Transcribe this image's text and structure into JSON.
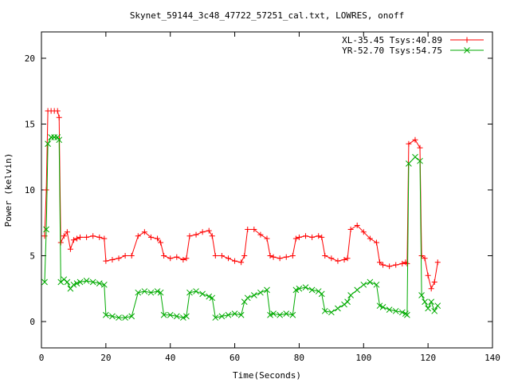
{
  "chart_data": {
    "type": "line",
    "title": "Skynet_59144_3c48_47722_57251_cal.txt, LOWRES, onoff",
    "xlabel": "Time(Seconds)",
    "ylabel": "Power (kelvin)",
    "xlim": [
      0,
      140
    ],
    "ylim": [
      -2,
      22
    ],
    "xticks": [
      0,
      20,
      40,
      60,
      80,
      100,
      120,
      140
    ],
    "yticks": [
      0,
      5,
      10,
      15,
      20
    ],
    "grid": false,
    "legend_position": "top-right",
    "series": [
      {
        "name": "XL-35.45 Tsys:40.89",
        "color": "#ff0000",
        "marker": "plus",
        "x": [
          1.0,
          1.5,
          2.0,
          3.0,
          4.0,
          5.0,
          5.5,
          6.0,
          7.0,
          8.0,
          9.0,
          10.0,
          11.0,
          12.0,
          14.0,
          16.0,
          18.0,
          19.5,
          20.0,
          22.0,
          24.0,
          26.0,
          28.0,
          30.0,
          32.0,
          34.0,
          36.0,
          37.0,
          38.0,
          40.0,
          42.0,
          44.0,
          45.0,
          46.0,
          48.0,
          50.0,
          52.0,
          53.0,
          54.0,
          56.0,
          58.0,
          60.0,
          62.0,
          63.0,
          64.0,
          66.0,
          68.0,
          70.0,
          71.0,
          72.0,
          74.0,
          76.0,
          78.0,
          79.0,
          80.0,
          82.0,
          84.0,
          86.0,
          87.0,
          88.0,
          90.0,
          92.0,
          94.0,
          95.0,
          96.0,
          98.0,
          100.0,
          102.0,
          104.0,
          105.0,
          106.0,
          108.0,
          110.0,
          112.0,
          113.0,
          113.5,
          114.0,
          116.0,
          117.5,
          118.0,
          119.0,
          120.0,
          121.0,
          122.0,
          123.0
        ],
        "y": [
          6.5,
          10.0,
          16.0,
          16.0,
          16.0,
          16.0,
          15.5,
          6.0,
          6.5,
          6.8,
          5.5,
          6.2,
          6.3,
          6.4,
          6.4,
          6.5,
          6.4,
          6.3,
          4.6,
          4.7,
          4.8,
          5.0,
          5.0,
          6.5,
          6.8,
          6.4,
          6.3,
          6.0,
          5.0,
          4.8,
          4.9,
          4.7,
          4.8,
          6.5,
          6.6,
          6.8,
          6.9,
          6.5,
          5.0,
          5.0,
          4.8,
          4.6,
          4.5,
          5.0,
          7.0,
          7.0,
          6.6,
          6.3,
          5.0,
          4.9,
          4.8,
          4.9,
          5.0,
          6.3,
          6.4,
          6.5,
          6.4,
          6.5,
          6.4,
          5.0,
          4.8,
          4.6,
          4.7,
          4.8,
          7.0,
          7.3,
          6.8,
          6.3,
          6.0,
          4.5,
          4.3,
          4.2,
          4.3,
          4.4,
          4.5,
          4.4,
          13.5,
          13.8,
          13.2,
          5.0,
          4.8,
          3.5,
          2.5,
          3.0,
          4.5
        ]
      },
      {
        "name": "YR-52.70 Tsys:54.75",
        "color": "#00aa00",
        "marker": "cross",
        "x": [
          1.0,
          1.5,
          2.0,
          3.0,
          4.0,
          5.0,
          5.5,
          6.0,
          7.0,
          8.0,
          9.0,
          10.0,
          11.0,
          12.0,
          14.0,
          16.0,
          18.0,
          19.5,
          20.0,
          22.0,
          24.0,
          26.0,
          28.0,
          30.0,
          32.0,
          34.0,
          36.0,
          37.0,
          38.0,
          40.0,
          42.0,
          44.0,
          45.0,
          46.0,
          48.0,
          50.0,
          52.0,
          53.0,
          54.0,
          56.0,
          58.0,
          60.0,
          62.0,
          63.0,
          64.0,
          66.0,
          68.0,
          70.0,
          71.0,
          72.0,
          74.0,
          76.0,
          78.0,
          79.0,
          80.0,
          82.0,
          84.0,
          86.0,
          87.0,
          88.0,
          90.0,
          92.0,
          94.0,
          95.0,
          96.0,
          98.0,
          100.0,
          102.0,
          104.0,
          105.0,
          106.0,
          108.0,
          110.0,
          112.0,
          113.0,
          113.5,
          114.0,
          116.0,
          117.5,
          118.0,
          119.0,
          120.0,
          121.0,
          122.0,
          123.0
        ],
        "y": [
          3.0,
          7.0,
          13.5,
          14.0,
          14.0,
          14.0,
          13.8,
          3.0,
          3.2,
          3.0,
          2.5,
          2.8,
          2.9,
          3.0,
          3.1,
          3.0,
          2.9,
          2.8,
          0.5,
          0.4,
          0.3,
          0.3,
          0.4,
          2.2,
          2.3,
          2.2,
          2.3,
          2.2,
          0.5,
          0.5,
          0.4,
          0.3,
          0.4,
          2.2,
          2.3,
          2.1,
          1.9,
          1.8,
          0.3,
          0.4,
          0.5,
          0.6,
          0.5,
          1.5,
          1.8,
          2.0,
          2.2,
          2.4,
          0.5,
          0.6,
          0.5,
          0.6,
          0.5,
          2.4,
          2.5,
          2.6,
          2.4,
          2.3,
          2.1,
          0.8,
          0.7,
          1.0,
          1.3,
          1.5,
          2.0,
          2.4,
          2.8,
          3.0,
          2.8,
          1.2,
          1.1,
          0.9,
          0.8,
          0.7,
          0.6,
          0.5,
          12.0,
          12.5,
          12.2,
          2.0,
          1.5,
          1.0,
          1.5,
          0.8,
          1.2
        ]
      }
    ]
  }
}
